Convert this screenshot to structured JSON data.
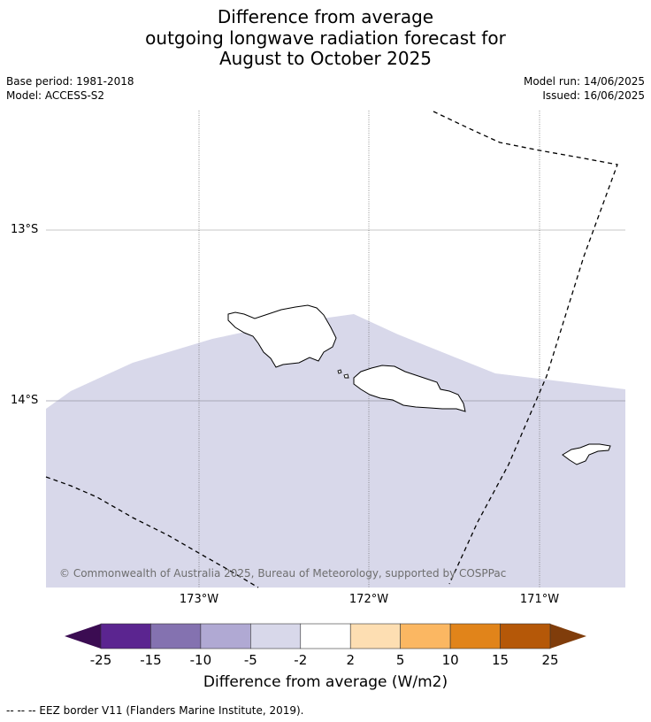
{
  "title": {
    "line1": "Difference from average",
    "line2": "outgoing longwave radiation forecast for",
    "line3": "August to October 2025"
  },
  "meta": {
    "base_period": "Base period: 1981-2018",
    "model": "Model: ACCESS-S2",
    "model_run": "Model run: 14/06/2025",
    "issued": "Issued: 16/06/2025"
  },
  "map": {
    "latitude_labels": [
      "13°S",
      "14°S"
    ],
    "longitude_labels": [
      "173°W",
      "172°W",
      "171°W"
    ],
    "copyright": "© Commonwealth of Australia 2025, Bureau of Meteorology, supported by COSPPac",
    "shaded_category": "-5 to -2",
    "land_color": "#ffffff",
    "coastline_color": "#000000",
    "eez_line_style": "dashed"
  },
  "colorbar": {
    "ticks": [
      "-25",
      "-15",
      "-10",
      "-5",
      "-2",
      "2",
      "5",
      "10",
      "15",
      "25"
    ],
    "colors": [
      "#3b0c52",
      "#5b2590",
      "#8472b0",
      "#b0a9d3",
      "#d8d8ea",
      "#ffffff",
      "#fddeb2",
      "#fbb762",
      "#e1841a",
      "#b55808",
      "#803d0b"
    ],
    "extend": "both",
    "label": "Difference from average (W/m2)"
  },
  "footnote": "--  --  -- EEZ border V11 (Flanders Marine Institute, 2019)."
}
